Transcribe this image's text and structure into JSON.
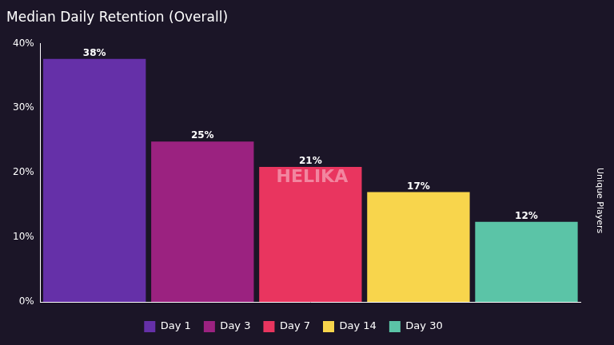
{
  "chart_data": {
    "type": "bar",
    "title": "Median Daily Retention (Overall)",
    "ylabel": "Unique Players",
    "annotation": "HELIKA",
    "categories": [
      "Day 1",
      "Day 3",
      "Day 7",
      "Day 14",
      "Day 30"
    ],
    "values": [
      37.6,
      24.8,
      20.9,
      17.0,
      12.4
    ],
    "value_labels": [
      "38%",
      "25%",
      "21%",
      "17%",
      "12%"
    ],
    "colors": [
      "#6530a8",
      "#9b2280",
      "#e9355f",
      "#f8d54c",
      "#5bc4a7"
    ],
    "ylim": [
      0,
      40
    ],
    "yticks": [
      {
        "value": 0,
        "label": "0%"
      },
      {
        "value": 10,
        "label": "10%"
      },
      {
        "value": 20,
        "label": "20%"
      },
      {
        "value": 30,
        "label": "30%"
      },
      {
        "value": 40,
        "label": "40%"
      }
    ],
    "grid": false,
    "legend": "bottom",
    "data_labels": true,
    "tick_labels": "y"
  }
}
